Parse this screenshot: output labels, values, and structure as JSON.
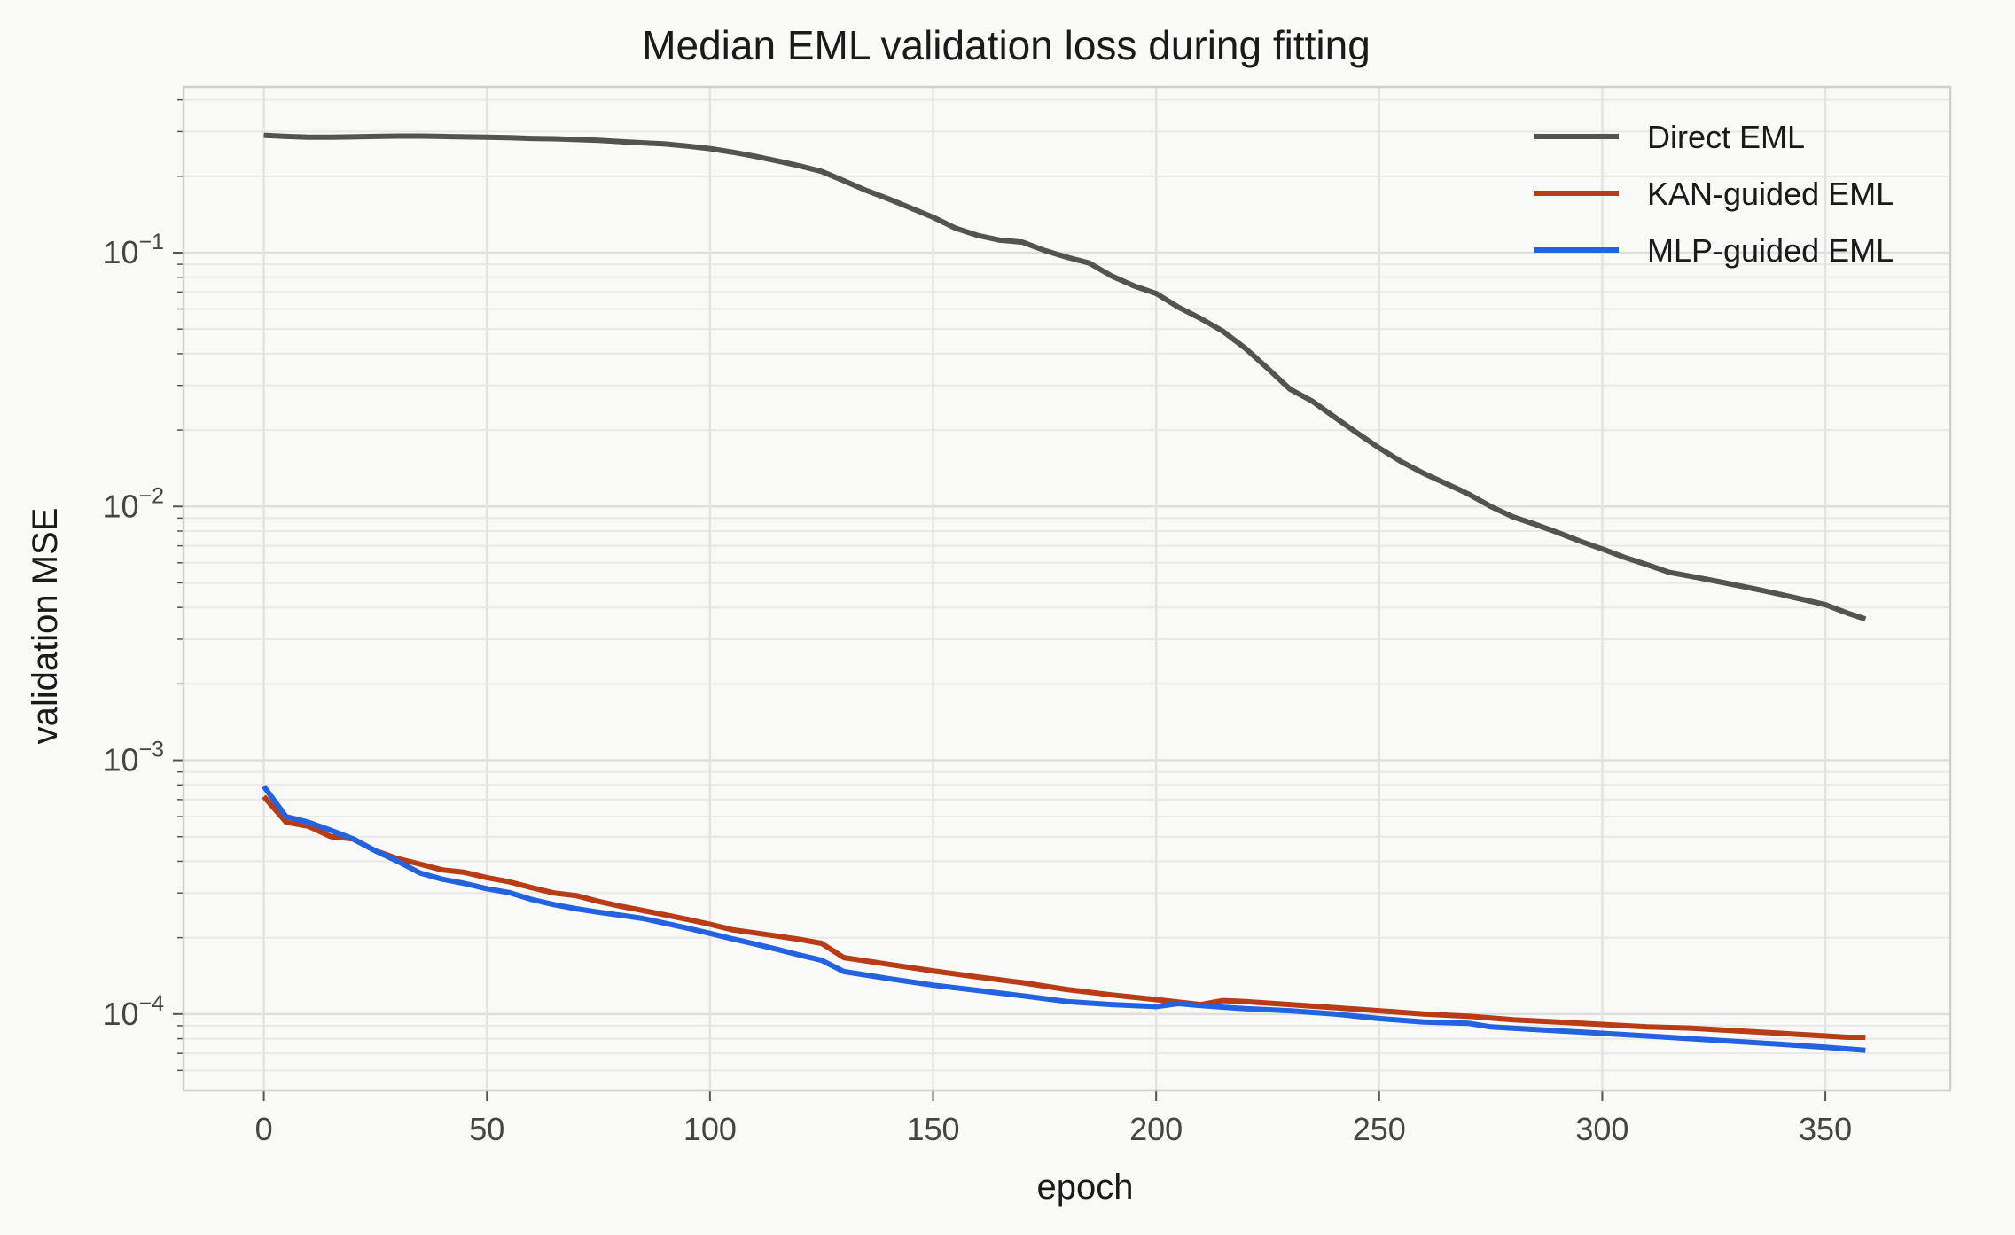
{
  "chart_data": {
    "type": "line",
    "title": "Median EML validation loss during fitting",
    "xlabel": "epoch",
    "ylabel": "validation MSE",
    "yscale": "log",
    "xlim": [
      -18,
      378
    ],
    "ylim": [
      5e-05,
      0.45
    ],
    "xticks": [
      0,
      50,
      100,
      150,
      200,
      250,
      300,
      350
    ],
    "yticks": [
      {
        "value": 0.1,
        "base": "10",
        "exp": "−1"
      },
      {
        "value": 0.01,
        "base": "10",
        "exp": "−2"
      },
      {
        "value": 0.001,
        "base": "10",
        "exp": "−3"
      },
      {
        "value": 0.0001,
        "base": "10",
        "exp": "−4"
      }
    ],
    "grid": true,
    "legend_position": "top-right",
    "series": [
      {
        "name": "Direct EML",
        "color": "#555350",
        "x": [
          0,
          5,
          10,
          15,
          20,
          25,
          30,
          35,
          40,
          45,
          50,
          55,
          60,
          65,
          70,
          75,
          80,
          85,
          90,
          95,
          100,
          105,
          110,
          115,
          120,
          125,
          130,
          135,
          140,
          145,
          150,
          155,
          160,
          165,
          170,
          175,
          180,
          185,
          190,
          195,
          200,
          205,
          210,
          215,
          220,
          225,
          230,
          235,
          240,
          245,
          250,
          255,
          260,
          265,
          270,
          275,
          280,
          285,
          290,
          295,
          300,
          305,
          310,
          315,
          320,
          325,
          330,
          335,
          340,
          345,
          350,
          355,
          359
        ],
        "values": [
          0.29,
          0.287,
          0.285,
          0.285,
          0.286,
          0.287,
          0.288,
          0.288,
          0.287,
          0.286,
          0.285,
          0.284,
          0.282,
          0.281,
          0.279,
          0.277,
          0.274,
          0.271,
          0.268,
          0.263,
          0.257,
          0.249,
          0.24,
          0.23,
          0.22,
          0.209,
          0.192,
          0.176,
          0.163,
          0.15,
          0.138,
          0.125,
          0.117,
          0.112,
          0.11,
          0.102,
          0.096,
          0.091,
          0.081,
          0.074,
          0.069,
          0.061,
          0.055,
          0.049,
          0.042,
          0.035,
          0.029,
          0.026,
          0.0225,
          0.0195,
          0.017,
          0.015,
          0.0135,
          0.0123,
          0.0112,
          0.01,
          0.0091,
          0.0085,
          0.0079,
          0.0073,
          0.0068,
          0.0063,
          0.0059,
          0.0055,
          0.0053,
          0.0051,
          0.0049,
          0.0047,
          0.0045,
          0.0043,
          0.0041,
          0.0038,
          0.0036
        ]
      },
      {
        "name": "KAN-guided EML",
        "color": "#b83d17",
        "x": [
          0,
          5,
          10,
          15,
          20,
          25,
          30,
          35,
          40,
          45,
          50,
          55,
          60,
          65,
          70,
          75,
          80,
          85,
          90,
          95,
          100,
          105,
          110,
          115,
          120,
          125,
          130,
          140,
          150,
          160,
          170,
          180,
          190,
          200,
          210,
          215,
          220,
          230,
          240,
          250,
          260,
          270,
          280,
          290,
          300,
          310,
          320,
          330,
          340,
          350,
          355,
          359
        ],
        "values": [
          0.00072,
          0.00057,
          0.00055,
          0.0005,
          0.00049,
          0.00044,
          0.00041,
          0.00039,
          0.00037,
          0.000362,
          0.000345,
          0.000332,
          0.000315,
          0.0003,
          0.000293,
          0.000278,
          0.000266,
          0.000256,
          0.000246,
          0.000236,
          0.000226,
          0.000215,
          0.000209,
          0.000203,
          0.000197,
          0.00019,
          0.000167,
          0.000157,
          0.000148,
          0.00014,
          0.000133,
          0.000125,
          0.000119,
          0.000114,
          0.000109,
          0.000113,
          0.000112,
          0.000109,
          0.000106,
          0.000103,
          0.0001,
          9.8e-05,
          9.5e-05,
          9.3e-05,
          9.1e-05,
          8.9e-05,
          8.8e-05,
          8.6e-05,
          8.4e-05,
          8.2e-05,
          8.1e-05,
          8.1e-05
        ]
      },
      {
        "name": "MLP-guided EML",
        "color": "#2463e0",
        "x": [
          0,
          5,
          10,
          15,
          20,
          25,
          30,
          35,
          40,
          45,
          50,
          55,
          60,
          65,
          70,
          75,
          80,
          85,
          90,
          95,
          100,
          105,
          110,
          115,
          120,
          125,
          130,
          140,
          150,
          160,
          170,
          180,
          190,
          200,
          205,
          210,
          220,
          230,
          240,
          250,
          260,
          270,
          275,
          280,
          290,
          300,
          310,
          320,
          330,
          340,
          350,
          359
        ],
        "values": [
          0.00079,
          0.0006,
          0.00057,
          0.00053,
          0.00049,
          0.00044,
          0.0004,
          0.00036,
          0.00034,
          0.000327,
          0.000312,
          0.000301,
          0.000283,
          0.00027,
          0.00026,
          0.000252,
          0.000245,
          0.000238,
          0.000228,
          0.000218,
          0.000208,
          0.000198,
          0.000189,
          0.00018,
          0.000171,
          0.000163,
          0.000147,
          0.000138,
          0.00013,
          0.000124,
          0.000118,
          0.000112,
          0.000109,
          0.000107,
          0.00011,
          0.000108,
          0.000105,
          0.000103,
          0.0001,
          9.6e-05,
          9.3e-05,
          9.2e-05,
          8.9e-05,
          8.8e-05,
          8.6e-05,
          8.4e-05,
          8.2e-05,
          8e-05,
          7.8e-05,
          7.6e-05,
          7.4e-05,
          7.2e-05
        ]
      }
    ]
  }
}
